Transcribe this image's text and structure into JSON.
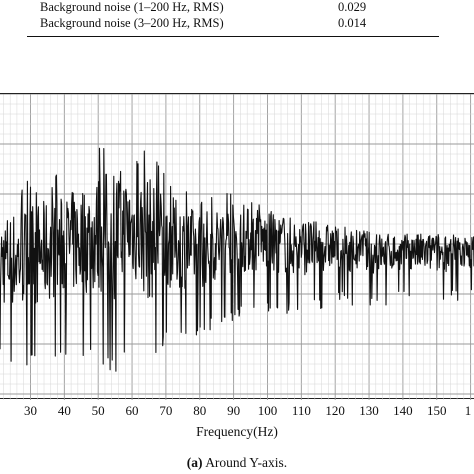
{
  "table": {
    "rows": [
      {
        "label": "Background noise (1–200 Hz, RMS)",
        "value": "0.029"
      },
      {
        "label": "Background noise (3–200 Hz, RMS)",
        "value": "0.014"
      }
    ]
  },
  "chart_data": {
    "type": "line",
    "xlabel": "Frequency(Hz)",
    "ylabel": "",
    "x_ticks": [
      "30",
      "40",
      "50",
      "60",
      "70",
      "80",
      "90",
      "100",
      "110",
      "120",
      "130",
      "140",
      "150",
      "1"
    ],
    "xlim": [
      21,
      161
    ],
    "grid": true,
    "color": "#111111",
    "series_envelope": {
      "x": [
        21,
        30,
        40,
        50,
        55,
        60,
        65,
        70,
        80,
        90,
        100,
        110,
        120,
        130,
        140,
        150,
        160
      ],
      "upper": [
        0.67,
        0.72,
        0.74,
        0.83,
        0.9,
        0.8,
        0.84,
        0.74,
        0.66,
        0.68,
        0.63,
        0.61,
        0.57,
        0.55,
        0.53,
        0.54,
        0.52
      ],
      "lower": [
        0.12,
        0.1,
        0.15,
        0.13,
        0.08,
        0.2,
        0.09,
        0.18,
        0.2,
        0.26,
        0.28,
        0.27,
        0.31,
        0.29,
        0.32,
        0.3,
        0.33
      ]
    }
  },
  "caption": {
    "label": "(a)",
    "text": "Around Y-axis."
  }
}
